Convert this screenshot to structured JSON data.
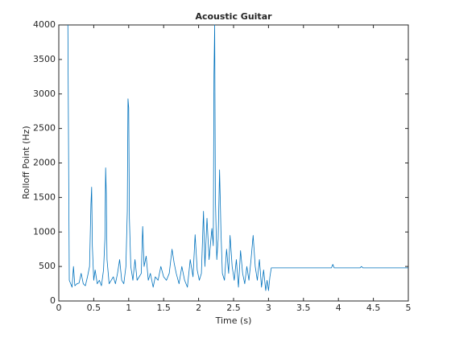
{
  "chart_data": {
    "type": "line",
    "title": "Acoustic Guitar",
    "xlabel": "Time (s)",
    "ylabel": "Rolloff Point (Hz)",
    "x": [
      0.13,
      0.15,
      0.17,
      0.19,
      0.21,
      0.23,
      0.26,
      0.29,
      0.32,
      0.35,
      0.38,
      0.41,
      0.44,
      0.46,
      0.47,
      0.48,
      0.5,
      0.52,
      0.55,
      0.58,
      0.61,
      0.64,
      0.66,
      0.67,
      0.68,
      0.69,
      0.72,
      0.75,
      0.78,
      0.81,
      0.84,
      0.87,
      0.9,
      0.93,
      0.96,
      0.98,
      0.99,
      1.0,
      1.01,
      1.03,
      1.06,
      1.09,
      1.12,
      1.15,
      1.18,
      1.2,
      1.22,
      1.25,
      1.28,
      1.31,
      1.35,
      1.38,
      1.42,
      1.46,
      1.5,
      1.54,
      1.58,
      1.62,
      1.65,
      1.68,
      1.72,
      1.76,
      1.8,
      1.84,
      1.88,
      1.92,
      1.95,
      1.98,
      2.01,
      2.04,
      2.07,
      2.09,
      2.12,
      2.15,
      2.19,
      2.21,
      2.22,
      2.23,
      2.24,
      2.26,
      2.28,
      2.3,
      2.32,
      2.34,
      2.37,
      2.4,
      2.43,
      2.45,
      2.48,
      2.51,
      2.54,
      2.57,
      2.6,
      2.63,
      2.66,
      2.69,
      2.72,
      2.75,
      2.78,
      2.81,
      2.84,
      2.87,
      2.9,
      2.93,
      2.96,
      2.98,
      3.0,
      3.02,
      3.04,
      3.9,
      3.92,
      3.94,
      4.31,
      4.33,
      4.35,
      5.0
    ],
    "series": [
      {
        "color": "#0072bd",
        "values": [
          4000,
          300,
          250,
          200,
          500,
          220,
          250,
          260,
          400,
          250,
          220,
          350,
          500,
          1400,
          1650,
          800,
          300,
          450,
          250,
          300,
          220,
          450,
          900,
          1930,
          1550,
          600,
          250,
          300,
          350,
          250,
          400,
          600,
          300,
          250,
          500,
          1300,
          2930,
          2800,
          1200,
          500,
          300,
          600,
          300,
          350,
          400,
          1080,
          500,
          650,
          300,
          400,
          200,
          350,
          300,
          500,
          350,
          300,
          400,
          750,
          550,
          400,
          250,
          500,
          300,
          200,
          600,
          350,
          960,
          450,
          300,
          400,
          1300,
          500,
          1200,
          600,
          1050,
          800,
          3280,
          4000,
          1500,
          600,
          900,
          1900,
          1000,
          400,
          300,
          750,
          400,
          950,
          500,
          300,
          600,
          200,
          730,
          400,
          250,
          500,
          300,
          600,
          950,
          500,
          300,
          600,
          200,
          450,
          150,
          300,
          150,
          350,
          480,
          480,
          530,
          480,
          480,
          500,
          480,
          480
        ]
      }
    ],
    "xlim": [
      0,
      5
    ],
    "xticks": [
      0,
      0.5,
      1,
      1.5,
      2,
      2.5,
      3,
      3.5,
      4,
      4.5,
      5
    ],
    "ylim": [
      0,
      4000
    ],
    "yticks": [
      0,
      500,
      1000,
      1500,
      2000,
      2500,
      3000,
      3500,
      4000
    ],
    "grid": false
  }
}
